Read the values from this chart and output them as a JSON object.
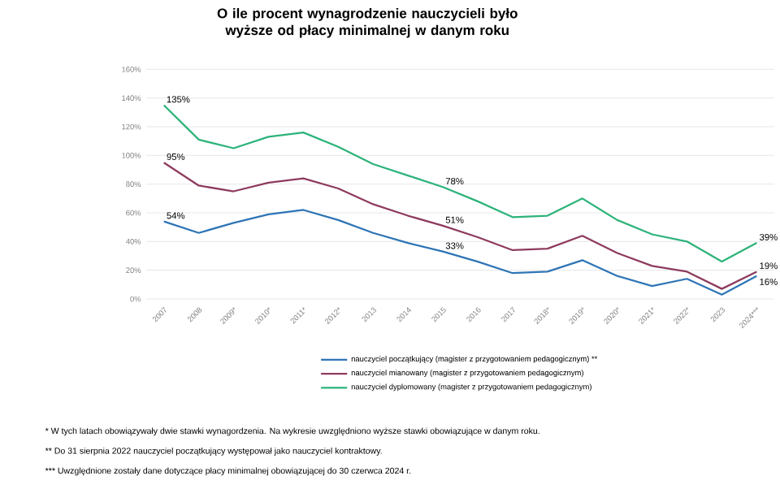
{
  "chart_data": {
    "type": "line",
    "title": "O ile procent wynagrodzenie nauczycieli było wyższe od płacy minimalnej w danym roku",
    "categories": [
      "2007",
      "2008",
      "2009*",
      "2010*",
      "2011*",
      "2012*",
      "2013",
      "2014",
      "2015",
      "2016",
      "2017",
      "2018*",
      "2019*",
      "2020*",
      "2021*",
      "2022*",
      "2023",
      "2024***"
    ],
    "series": [
      {
        "name": "nauczyciel początkujący (magister z przygotowaniem pedagogicznym) **",
        "color": "#2e75b6",
        "values": [
          54,
          46,
          53,
          59,
          62,
          55,
          46,
          39,
          33,
          26,
          18,
          19,
          27,
          16,
          9,
          14,
          3,
          16
        ],
        "value_labels": [
          "54%",
          null,
          null,
          null,
          null,
          null,
          null,
          null,
          "33%",
          null,
          null,
          null,
          null,
          null,
          null,
          null,
          null,
          "16%"
        ]
      },
      {
        "name": "nauczyciel mianowany (magister z przygotowaniem pedagogicznym)",
        "color": "#8e3b5e",
        "values": [
          95,
          79,
          75,
          81,
          84,
          77,
          66,
          58,
          51,
          43,
          34,
          35,
          44,
          32,
          23,
          19,
          7,
          19
        ],
        "value_labels": [
          "95%",
          null,
          null,
          null,
          null,
          null,
          null,
          null,
          "51%",
          null,
          null,
          null,
          null,
          null,
          null,
          null,
          null,
          "19%"
        ]
      },
      {
        "name": "nauczyciel dyplomowany (magister z przygotowaniem pedagogicznym)",
        "color": "#2db37a",
        "values": [
          135,
          111,
          105,
          113,
          116,
          106,
          94,
          86,
          78,
          68,
          57,
          58,
          70,
          55,
          45,
          40,
          26,
          39
        ],
        "value_labels": [
          "135%",
          null,
          null,
          null,
          null,
          null,
          null,
          null,
          "78%",
          null,
          null,
          null,
          null,
          null,
          null,
          null,
          null,
          "39%"
        ]
      }
    ],
    "ylim": [
      0,
      160
    ],
    "yticks": [
      {
        "value": 0,
        "label": "0%"
      },
      {
        "value": 20,
        "label": "20%"
      },
      {
        "value": 40,
        "label": "40%"
      },
      {
        "value": 60,
        "label": "60%"
      },
      {
        "value": 80,
        "label": "80%"
      },
      {
        "value": 100,
        "label": "100%"
      },
      {
        "value": 120,
        "label": "120%"
      },
      {
        "value": 140,
        "label": "140%"
      },
      {
        "value": 160,
        "label": "160%"
      }
    ],
    "grid": "y",
    "legend": "bottom",
    "marker": "none",
    "annotations": [
      "* W tych latach obowiązywały dwie stawki wynagordzenia. Na wykresie uwzględniono wyższe stawki obowiązujące w danym roku.",
      "** Do 31 sierpnia 2022 nauczyciel początkujący występował jako nauczyciel kontraktowy.",
      "*** Uwzględnione zostały dane dotyczące płacy minimalnej obowiązującej do 30 czerwca 2024 r."
    ]
  }
}
